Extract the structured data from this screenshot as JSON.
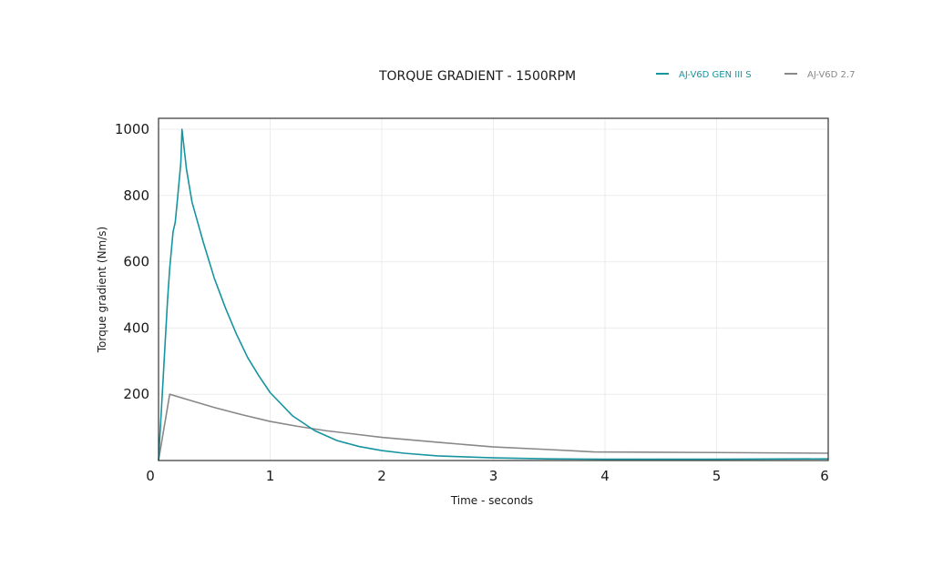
{
  "chart_data": {
    "type": "line",
    "title": "TORQUE GRADIENT - 1500RPM",
    "xlabel": "Time - seconds",
    "ylabel": "Torque gradient (Nm/s)",
    "xlim": [
      0,
      6
    ],
    "ylim": [
      0,
      1000
    ],
    "x_ticks": [
      0,
      1,
      2,
      3,
      4,
      5,
      6
    ],
    "x_tick_labels": [
      "0",
      "1",
      "2",
      "3",
      "4",
      "5",
      "6"
    ],
    "y_ticks": [
      200,
      400,
      600,
      800,
      1000
    ],
    "y_tick_labels": [
      "200",
      "400",
      "600",
      "800",
      "1000"
    ],
    "grid": true,
    "legend_position": "top-right",
    "series": [
      {
        "name": "AJ-V6D GEN III S",
        "color": "#16949f",
        "points": [
          [
            0,
            0
          ],
          [
            0.05,
            300
          ],
          [
            0.08,
            480
          ],
          [
            0.1,
            580
          ],
          [
            0.13,
            690
          ],
          [
            0.15,
            720
          ],
          [
            0.17,
            790
          ],
          [
            0.2,
            900
          ],
          [
            0.21,
            1000
          ],
          [
            0.25,
            880
          ],
          [
            0.3,
            780
          ],
          [
            0.35,
            720
          ],
          [
            0.4,
            660
          ],
          [
            0.5,
            550
          ],
          [
            0.6,
            460
          ],
          [
            0.7,
            380
          ],
          [
            0.8,
            310
          ],
          [
            0.9,
            255
          ],
          [
            1.0,
            205
          ],
          [
            1.2,
            135
          ],
          [
            1.4,
            90
          ],
          [
            1.6,
            60
          ],
          [
            1.8,
            42
          ],
          [
            2.0,
            30
          ],
          [
            2.2,
            22
          ],
          [
            2.5,
            14
          ],
          [
            3.0,
            8
          ],
          [
            3.5,
            5
          ],
          [
            4.0,
            4
          ],
          [
            5.0,
            4
          ],
          [
            6.0,
            5
          ]
        ]
      },
      {
        "name": "AJ-V6D 2.7",
        "color": "#888888",
        "points": [
          [
            0,
            0
          ],
          [
            0.1,
            200
          ],
          [
            0.3,
            180
          ],
          [
            0.5,
            160
          ],
          [
            0.75,
            138
          ],
          [
            1.0,
            118
          ],
          [
            1.25,
            103
          ],
          [
            1.5,
            90
          ],
          [
            1.75,
            80
          ],
          [
            2.0,
            70
          ],
          [
            2.5,
            55
          ],
          [
            3.0,
            41
          ],
          [
            3.5,
            33
          ],
          [
            3.9,
            26
          ],
          [
            4.5,
            25
          ],
          [
            5.0,
            24
          ],
          [
            5.5,
            23
          ],
          [
            6.0,
            22
          ]
        ]
      }
    ]
  }
}
